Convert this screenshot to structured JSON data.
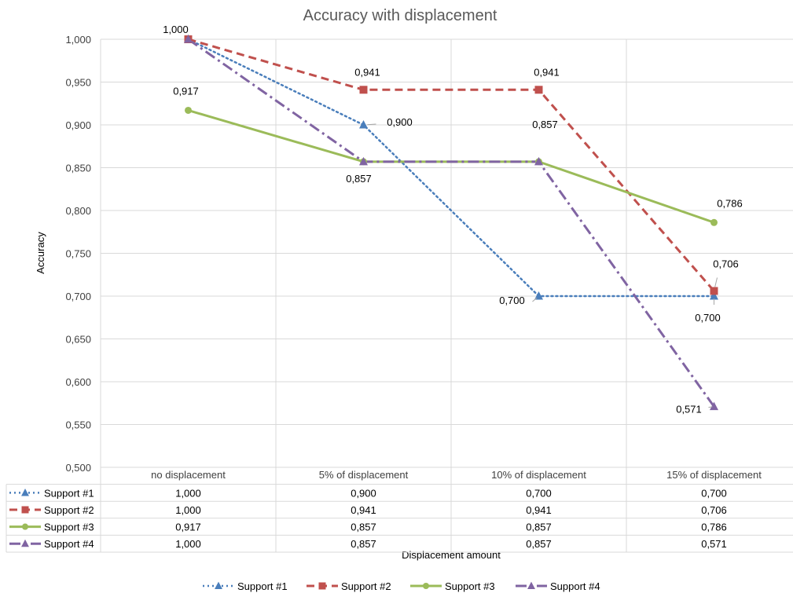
{
  "chart_data": {
    "type": "line",
    "title": "Accuracy with displacement",
    "xlabel": "Displacement amount",
    "ylabel": "Accuracy",
    "ylim": [
      0.5,
      1.0
    ],
    "y_step": 0.05,
    "y_tick_labels": [
      "0,500",
      "0,550",
      "0,600",
      "0,650",
      "0,700",
      "0,750",
      "0,800",
      "0,850",
      "0,900",
      "0,950",
      "1,000"
    ],
    "categories": [
      "no displacement",
      "5% of displacement",
      "10%  of displacement",
      "15%  of displacement"
    ],
    "grid": true,
    "legend": "bottom",
    "data_table": true,
    "series": [
      {
        "name": "Support #1",
        "values": [
          1.0,
          0.9,
          0.7,
          0.7
        ],
        "labels": [
          "1,000",
          "0,900",
          "0,700",
          "0,700"
        ],
        "color": "#4a7ebb",
        "dash": "dotted",
        "marker": "triangle"
      },
      {
        "name": "Support #2",
        "values": [
          1.0,
          0.941,
          0.941,
          0.706
        ],
        "labels": [
          "1,000",
          "0,941",
          "0,941",
          "0,706"
        ],
        "color": "#c0504d",
        "dash": "dashed",
        "marker": "square"
      },
      {
        "name": "Support #3",
        "values": [
          0.917,
          0.857,
          0.857,
          0.786
        ],
        "labels": [
          "0,917",
          "0,857",
          "0,857",
          "0,786"
        ],
        "color": "#9bbb59",
        "dash": "solid",
        "marker": "circle"
      },
      {
        "name": "Support #4",
        "values": [
          1.0,
          0.857,
          0.857,
          0.571
        ],
        "labels": [
          "1,000",
          "0,857",
          "0,857",
          "0,571"
        ],
        "color": "#8064a2",
        "dash": "dashdot",
        "marker": "triangle"
      }
    ]
  }
}
